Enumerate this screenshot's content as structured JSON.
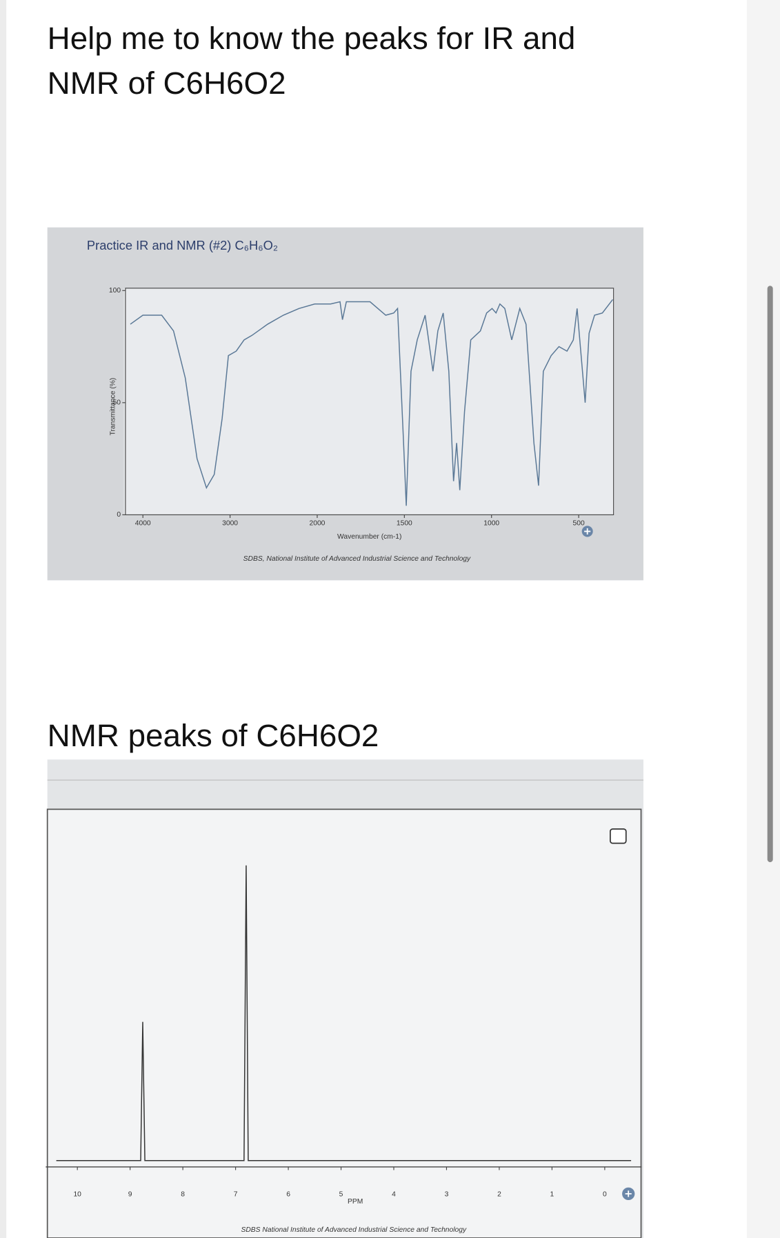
{
  "question": {
    "title_lines": [
      "Help me to know the peaks for IR and",
      "NMR of C6H6O2"
    ],
    "nmr_heading": "NMR peaks of C6H6O2"
  },
  "chart_data": [
    {
      "type": "line",
      "title": "Practice IR and NMR (#2) C₆H₆O₂",
      "x_label": "Wavenumber (cm-1)",
      "y_label": "Transmittance (%)",
      "source": "SDBS, National Institute of Advanced Industrial Science and Technology",
      "xlim": [
        4200,
        300
      ],
      "xticks": [
        4000,
        3000,
        2000,
        1500,
        1000,
        500
      ],
      "ylim": [
        0,
        100
      ],
      "yticks": [
        0,
        50,
        100
      ],
      "series": [
        {
          "color": "#5a7896",
          "x": [
            4144,
            4000,
            3784,
            3649,
            3514,
            3379,
            3271,
            3181,
            3091,
            3019,
            2929,
            2839,
            2749,
            2569,
            2389,
            2209,
            2029,
            1923,
            1869,
            1855,
            1833,
            1697,
            1607,
            1561,
            1539,
            1507,
            1489,
            1462,
            1426,
            1381,
            1336,
            1308,
            1277,
            1245,
            1218,
            1200,
            1182,
            1155,
            1119,
            1064,
            1028,
            997,
            974,
            952,
            924,
            884,
            838,
            802,
            757,
            730,
            703,
            658,
            613,
            567,
            531,
            509,
            486,
            463,
            440,
            409,
            364,
            305
          ],
          "values": [
            85,
            89,
            89,
            82,
            61,
            25,
            12,
            18,
            43,
            71,
            73,
            78,
            80,
            85,
            89,
            92,
            94,
            94,
            95,
            87,
            95,
            95,
            89,
            90,
            92,
            36,
            4,
            64,
            78,
            89,
            64,
            82,
            90,
            64,
            15,
            32,
            11,
            46,
            78,
            82,
            90,
            92,
            90,
            94,
            92,
            78,
            92,
            85,
            32,
            13,
            64,
            71,
            75,
            73,
            78,
            92,
            71,
            50,
            81,
            89,
            90,
            96
          ]
        }
      ]
    },
    {
      "type": "line",
      "x_label": "PPM",
      "source": "SDBS National Institute of Advanced Industrial Science and Technology",
      "xlim": [
        10.6,
        -0.7
      ],
      "xticks": [
        10,
        9,
        8,
        7,
        6,
        5,
        4,
        3,
        2,
        1,
        0
      ],
      "ylim": [
        0,
        115
      ],
      "series": [
        {
          "color": "#333333",
          "x": [
            10.4,
            8.8,
            8.76,
            8.72,
            6.84,
            6.8,
            6.76,
            -0.5
          ],
          "values": [
            0,
            0,
            47,
            0,
            0,
            100,
            0,
            0
          ]
        }
      ]
    }
  ]
}
